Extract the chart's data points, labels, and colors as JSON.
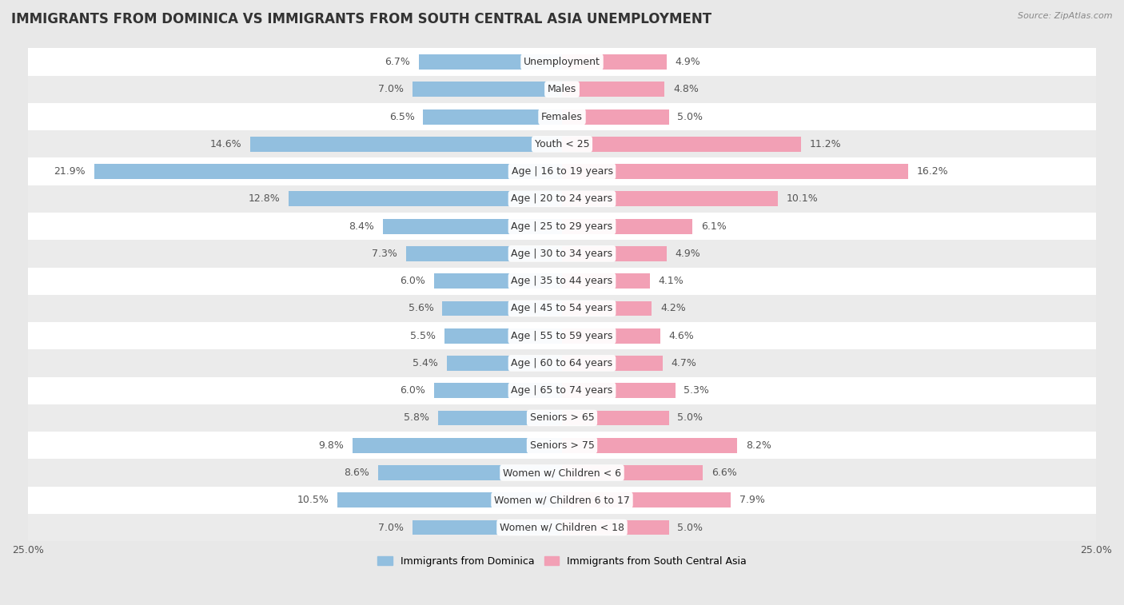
{
  "title": "IMMIGRANTS FROM DOMINICA VS IMMIGRANTS FROM SOUTH CENTRAL ASIA UNEMPLOYMENT",
  "source": "Source: ZipAtlas.com",
  "categories": [
    "Unemployment",
    "Males",
    "Females",
    "Youth < 25",
    "Age | 16 to 19 years",
    "Age | 20 to 24 years",
    "Age | 25 to 29 years",
    "Age | 30 to 34 years",
    "Age | 35 to 44 years",
    "Age | 45 to 54 years",
    "Age | 55 to 59 years",
    "Age | 60 to 64 years",
    "Age | 65 to 74 years",
    "Seniors > 65",
    "Seniors > 75",
    "Women w/ Children < 6",
    "Women w/ Children 6 to 17",
    "Women w/ Children < 18"
  ],
  "dominica_values": [
    6.7,
    7.0,
    6.5,
    14.6,
    21.9,
    12.8,
    8.4,
    7.3,
    6.0,
    5.6,
    5.5,
    5.4,
    6.0,
    5.8,
    9.8,
    8.6,
    10.5,
    7.0
  ],
  "sca_values": [
    4.9,
    4.8,
    5.0,
    11.2,
    16.2,
    10.1,
    6.1,
    4.9,
    4.1,
    4.2,
    4.6,
    4.7,
    5.3,
    5.0,
    8.2,
    6.6,
    7.9,
    5.0
  ],
  "dominica_color": "#92bfdf",
  "sca_color": "#f2a0b5",
  "row_colors": [
    "#ffffff",
    "#ebebeb"
  ],
  "xlim": 25.0,
  "bar_height": 0.55,
  "title_fontsize": 12,
  "label_fontsize": 9,
  "value_fontsize": 9,
  "tick_fontsize": 9,
  "bg_color": "#e8e8e8"
}
